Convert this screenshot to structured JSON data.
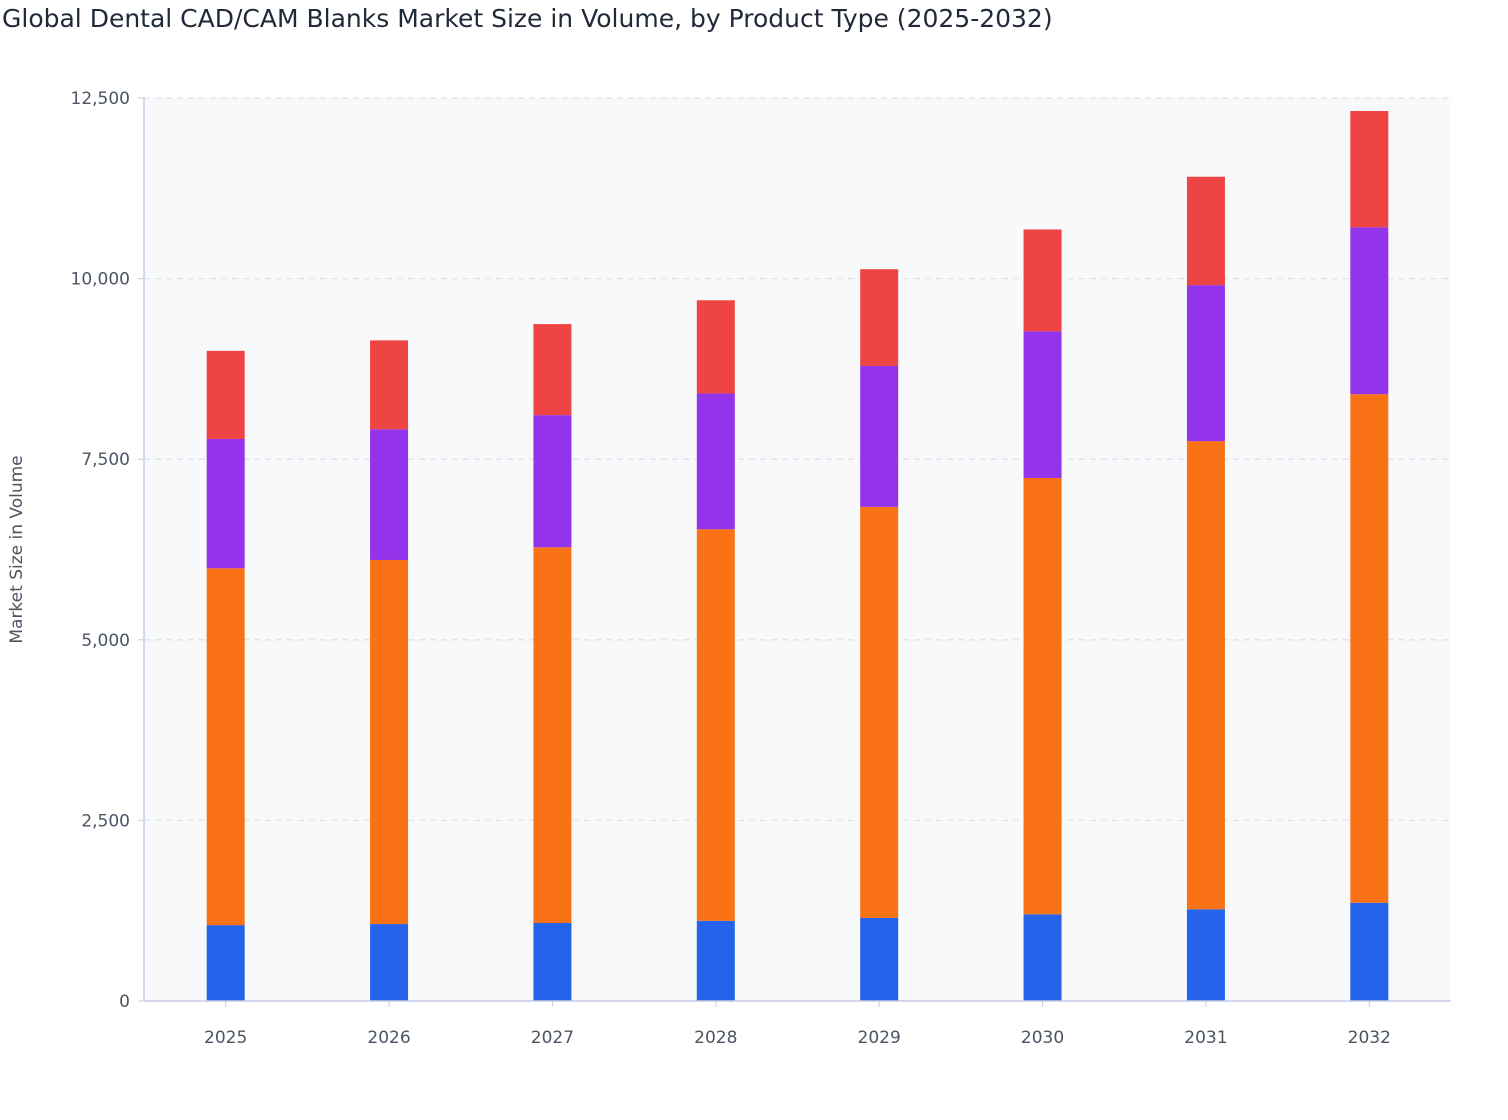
{
  "chart_data": {
    "type": "bar",
    "stacked": true,
    "title": "Global Dental CAD/CAM Blanks Market Size in Volume, by Product Type (2025-2032)",
    "xlabel": "",
    "ylabel": "Market Size in Volume",
    "ylim": [
      0,
      12500
    ],
    "yticks": [
      0,
      2500,
      5000,
      7500,
      10000,
      12500
    ],
    "ytick_labels": [
      "0",
      "2,500",
      "5,000",
      "7,500",
      "10,000",
      "12,500"
    ],
    "categories": [
      "2025",
      "2026",
      "2027",
      "2028",
      "2029",
      "2030",
      "2031",
      "2032"
    ],
    "grid": true,
    "legend": "none",
    "series": [
      {
        "color": "#2563eb",
        "values": [
          1050,
          1065,
          1080,
          1110,
          1150,
          1200,
          1270,
          1360
        ]
      },
      {
        "color": "#f97316",
        "values": [
          4940,
          5040,
          5200,
          5420,
          5690,
          6040,
          6480,
          7040
        ]
      },
      {
        "color": "#9333ea",
        "values": [
          1790,
          1810,
          1830,
          1880,
          1950,
          2030,
          2160,
          2310
        ]
      },
      {
        "color": "#ef4444",
        "values": [
          1220,
          1230,
          1260,
          1290,
          1340,
          1410,
          1500,
          1610
        ]
      }
    ]
  }
}
